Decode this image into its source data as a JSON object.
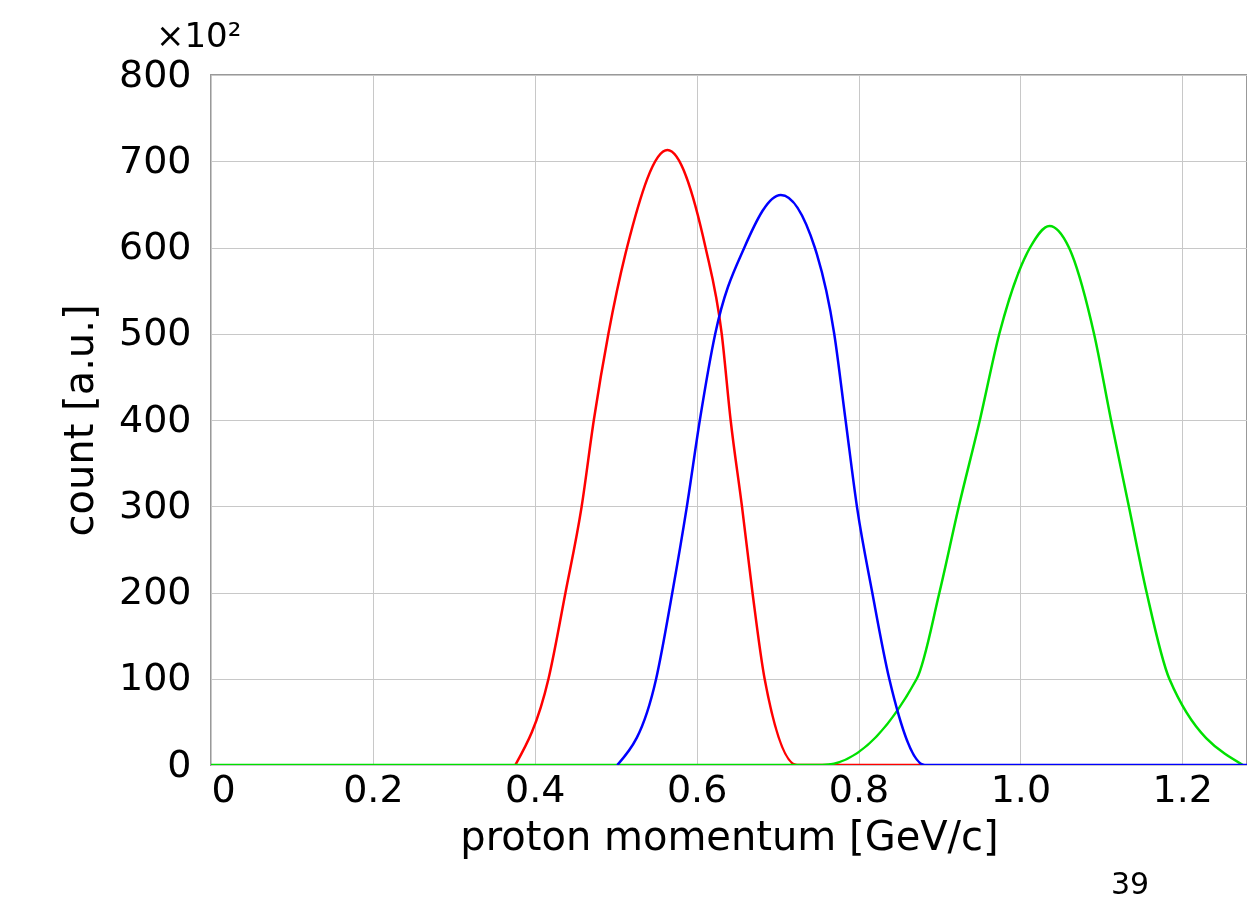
{
  "chart_data": {
    "type": "line",
    "xlabel": "proton momentum [GeV/c]",
    "ylabel": "count [a.u.]",
    "annotations": [
      "×10²",
      "39"
    ],
    "xlim": [
      0,
      1.28
    ],
    "xticks": [
      0,
      0.2,
      0.4,
      0.6,
      0.8,
      {
        "value": 1,
        "label": "1.0"
      },
      1.2
    ],
    "ylim": [
      0,
      800
    ],
    "yticks": [
      0,
      100,
      200,
      300,
      400,
      500,
      600,
      700,
      800
    ],
    "grid": true,
    "marker": "none",
    "line_style": "solid",
    "series": [
      {
        "color": "#ff0000",
        "x": [
          0.376,
          0.417,
          0.438,
          0.458,
          0.473,
          0.491,
          0.514,
          0.564,
          0.611,
          0.631,
          0.642,
          0.656,
          0.669,
          0.684,
          0.724,
          0.88
        ],
        "values": [
          0,
          100,
          200,
          300,
          400,
          500,
          600,
          713,
          600,
          500,
          400,
          300,
          200,
          100,
          0,
          0
        ]
      },
      {
        "color": "#00e000",
        "x": [
          0,
          0.755,
          0.872,
          0.9,
          0.924,
          0.95,
          0.974,
          1.012,
          1.036,
          1.06,
          1.091,
          1.112,
          1.134,
          1.156,
          1.184,
          1.275
        ],
        "values": [
          0,
          0,
          100,
          200,
          300,
          400,
          500,
          600,
          625,
          600,
          500,
          400,
          300,
          200,
          100,
          0
        ]
      },
      {
        "color": "#0000ff",
        "x": [
          0.502,
          0.55,
          0.57,
          0.588,
          0.604,
          0.623,
          0.659,
          0.704,
          0.746,
          0.77,
          0.784,
          0.798,
          0.817,
          0.838,
          0.882,
          1.28
        ],
        "values": [
          0,
          100,
          200,
          300,
          400,
          500,
          600,
          661,
          600,
          500,
          400,
          300,
          200,
          100,
          0,
          0
        ]
      }
    ]
  }
}
